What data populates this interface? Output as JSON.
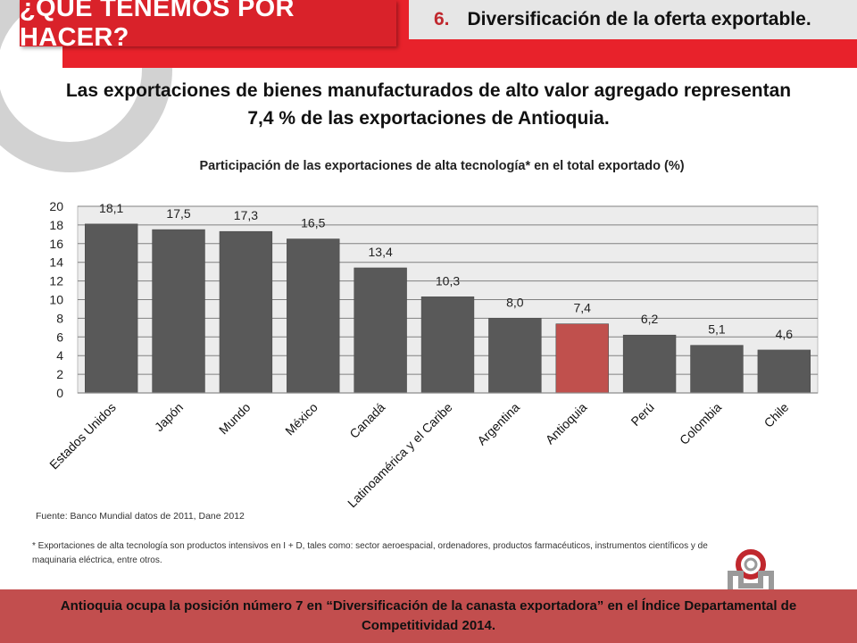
{
  "header": {
    "title": "¿QUÉ TENEMOS POR HACER?",
    "subtitle_number": "6.",
    "subtitle": "Diversificación de la oferta exportable."
  },
  "headline": "Las exportaciones de bienes manufacturados de alto valor agregado representan 7,4 % de las exportaciones de Antioquia.",
  "chart_data": {
    "type": "bar",
    "title": "Participación de las exportaciones de alta tecnología* en el total exportado (%)",
    "categories": [
      "Estados Unidos",
      "Japón",
      "Mundo",
      "México",
      "Canadá",
      "Latinoamérica y el Caribe",
      "Argentina",
      "Antioquia",
      "Perú",
      "Colombia",
      "Chile"
    ],
    "values": [
      18.1,
      17.5,
      17.3,
      16.5,
      13.4,
      10.3,
      8.0,
      7.4,
      6.2,
      5.1,
      4.6
    ],
    "value_labels": [
      "18,1",
      "17,5",
      "17,3",
      "16,5",
      "13,4",
      "10,3",
      "8,0",
      "7,4",
      "6,2",
      "5,1",
      "4,6"
    ],
    "yticks": [
      "0",
      "2",
      "4",
      "6",
      "8",
      "10",
      "12",
      "14",
      "16",
      "18",
      "20"
    ],
    "ylim": [
      0,
      20
    ],
    "grid": true,
    "legend": "none",
    "highlight_category": "Antioquia",
    "colors": {
      "bar": "#595959",
      "highlight": "#c0504d",
      "plot_bg": "#ececec",
      "grid": "#808080"
    }
  },
  "source": "Fuente: Banco Mundial datos de 2011, Dane 2012",
  "footnote": "* Exportaciones de alta tecnología son productos intensivos en I + D, tales como: sector aeroespacial, ordenadores, productos farmacéuticos, instrumentos científicos y de maquinaria eléctrica, entre otros.",
  "footer": "Antioquia ocupa la posición número 7 en “Diversificación de la canasta exportadora” en el Índice Departamental de Competitividad 2014.",
  "colors": {
    "accent_red": "#e8222b",
    "title_red": "#d9222a",
    "footer_red": "#c24e4e",
    "subtitle_bg": "#e6e6e6"
  },
  "icons": {
    "decoration": "ring-decoration-icon",
    "logo": "institution-logo-icon"
  }
}
